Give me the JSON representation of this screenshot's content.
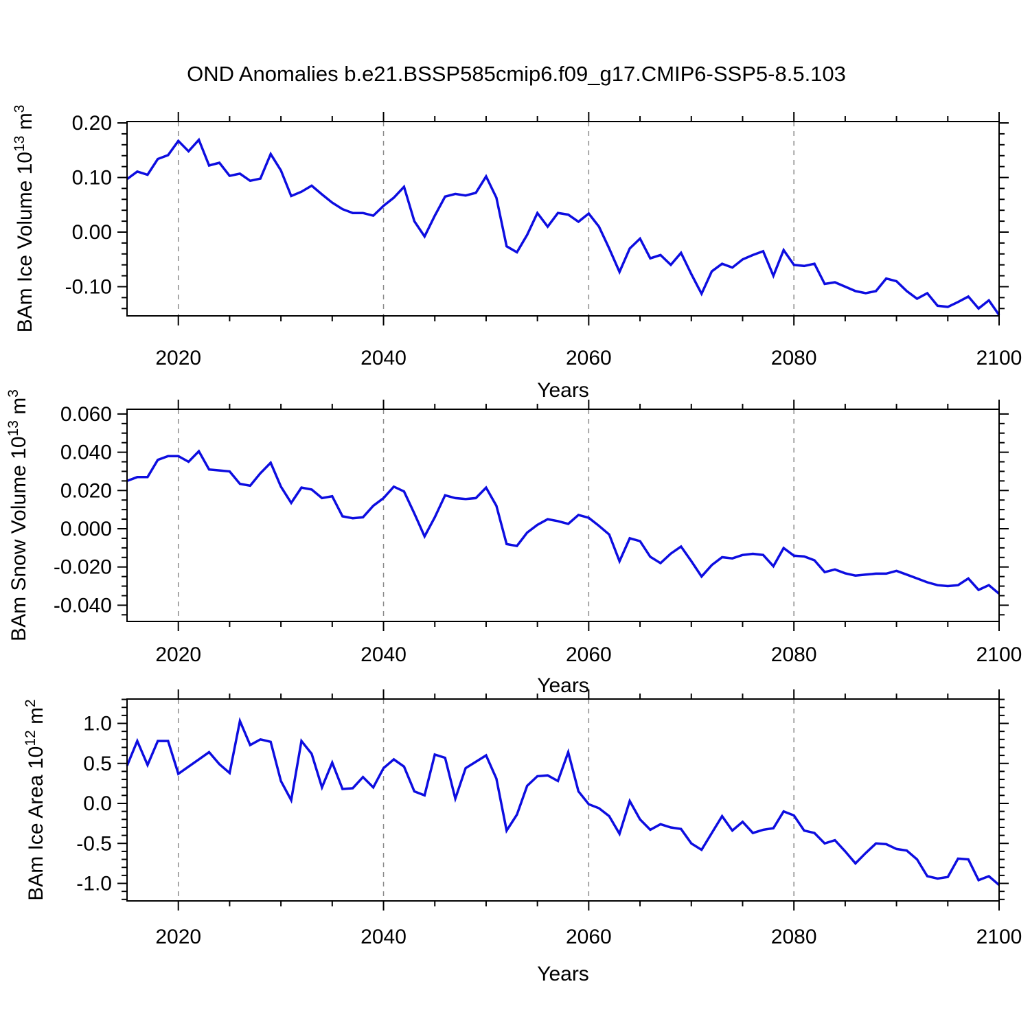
{
  "title": "OND Anomalies b.e21.BSSP585cmip6.f09_g17.CMIP6-SSP5-8.5.103",
  "line_color": "#0d0de0",
  "grid_color": "#8c8c8c",
  "frame_color": "#000000",
  "years": [
    2015,
    2016,
    2017,
    2018,
    2019,
    2020,
    2021,
    2022,
    2023,
    2024,
    2025,
    2026,
    2027,
    2028,
    2029,
    2030,
    2031,
    2032,
    2033,
    2034,
    2035,
    2036,
    2037,
    2038,
    2039,
    2040,
    2041,
    2042,
    2043,
    2044,
    2045,
    2046,
    2047,
    2048,
    2049,
    2050,
    2051,
    2052,
    2053,
    2054,
    2055,
    2056,
    2057,
    2058,
    2059,
    2060,
    2061,
    2062,
    2063,
    2064,
    2065,
    2066,
    2067,
    2068,
    2069,
    2070,
    2071,
    2072,
    2073,
    2074,
    2075,
    2076,
    2077,
    2078,
    2079,
    2080,
    2081,
    2082,
    2083,
    2084,
    2085,
    2086,
    2087,
    2088,
    2089,
    2090,
    2091,
    2092,
    2093,
    2094,
    2095,
    2096,
    2097,
    2098,
    2099,
    2100
  ],
  "chart_data": [
    {
      "type": "line",
      "id": "ice-volume",
      "title": "OND Anomalies b.e21.BSSP585cmip6.f09_g17.CMIP6-SSP5-8.5.103",
      "xlabel": "Years",
      "ylabel": "BAm Ice Volume 10^13 m^3",
      "ylabel_parts": [
        {
          "t": "BAm Ice Volume 10",
          "sup": false
        },
        {
          "t": "13",
          "sup": true
        },
        {
          "t": " m",
          "sup": false
        },
        {
          "t": "3",
          "sup": true
        }
      ],
      "xlim": [
        2015,
        2100
      ],
      "ylim": [
        -0.153,
        0.2025
      ],
      "x_tick_labels": [
        "2020",
        "2040",
        "2060",
        "2080",
        "2100"
      ],
      "x_ticks": [
        2020,
        2040,
        2060,
        2080,
        2100
      ],
      "x_minor_step": 5,
      "y_ticks": [
        0.2,
        0.1,
        0.0,
        -0.1
      ],
      "y_tick_labels": [
        "0.20",
        "0.10",
        "0.00",
        "-0.10"
      ],
      "y_major_step": 0.1,
      "y_minor_step": 0.02,
      "gridlines_x": [
        2020,
        2040,
        2060,
        2080
      ],
      "grid": "dashed-vertical",
      "legend": "none",
      "values": [
        0.097,
        0.111,
        0.105,
        0.134,
        0.141,
        0.167,
        0.148,
        0.169,
        0.122,
        0.127,
        0.103,
        0.107,
        0.094,
        0.098,
        0.143,
        0.113,
        0.066,
        0.074,
        0.085,
        0.069,
        0.054,
        0.042,
        0.035,
        0.035,
        0.03,
        0.048,
        0.063,
        0.083,
        0.02,
        -0.008,
        0.03,
        0.065,
        0.07,
        0.067,
        0.072,
        0.102,
        0.063,
        -0.026,
        -0.037,
        -0.005,
        0.035,
        0.01,
        0.035,
        0.032,
        0.019,
        0.034,
        0.01,
        -0.03,
        -0.073,
        -0.03,
        -0.012,
        -0.048,
        -0.042,
        -0.06,
        -0.038,
        -0.077,
        -0.113,
        -0.072,
        -0.058,
        -0.065,
        -0.05,
        -0.042,
        -0.035,
        -0.08,
        -0.033,
        -0.06,
        -0.062,
        -0.058,
        -0.095,
        -0.092,
        -0.1,
        -0.108,
        -0.112,
        -0.108,
        -0.085,
        -0.09,
        -0.108,
        -0.122,
        -0.112,
        -0.135,
        -0.137,
        -0.128,
        -0.118,
        -0.14,
        -0.125,
        -0.152
      ]
    },
    {
      "type": "line",
      "id": "snow-volume",
      "title": "",
      "xlabel": "Years",
      "ylabel": "BAm Snow Volume 10^13 m^3",
      "ylabel_parts": [
        {
          "t": "BAm Snow Volume 10",
          "sup": false
        },
        {
          "t": "13",
          "sup": true
        },
        {
          "t": " m",
          "sup": false
        },
        {
          "t": "3",
          "sup": true
        }
      ],
      "xlim": [
        2015,
        2100
      ],
      "ylim": [
        -0.0485,
        0.0625
      ],
      "x_tick_labels": [
        "2020",
        "2040",
        "2060",
        "2080",
        "2100"
      ],
      "x_ticks": [
        2020,
        2040,
        2060,
        2080,
        2100
      ],
      "x_minor_step": 5,
      "y_ticks": [
        0.06,
        0.04,
        0.02,
        0.0,
        -0.02,
        -0.04
      ],
      "y_tick_labels": [
        "0.060",
        "0.040",
        "0.020",
        "0.000",
        "-0.020",
        "-0.040"
      ],
      "y_major_step": 0.02,
      "y_minor_step": 0.005,
      "gridlines_x": [
        2020,
        2040,
        2060,
        2080
      ],
      "grid": "dashed-vertical",
      "legend": "none",
      "values": [
        0.025,
        0.027,
        0.027,
        0.036,
        0.038,
        0.038,
        0.035,
        0.0405,
        0.031,
        0.0305,
        0.03,
        0.0235,
        0.0225,
        0.029,
        0.0345,
        0.022,
        0.0135,
        0.0215,
        0.0205,
        0.016,
        0.017,
        0.0065,
        0.0055,
        0.006,
        0.012,
        0.016,
        0.022,
        0.0195,
        0.008,
        -0.004,
        0.006,
        0.0175,
        0.016,
        0.0155,
        0.016,
        0.0215,
        0.012,
        -0.008,
        -0.009,
        -0.002,
        0.002,
        0.005,
        0.004,
        0.0025,
        0.0072,
        0.0057,
        0.0015,
        -0.003,
        -0.017,
        -0.005,
        -0.0065,
        -0.0147,
        -0.018,
        -0.013,
        -0.0093,
        -0.017,
        -0.025,
        -0.019,
        -0.0149,
        -0.0155,
        -0.0137,
        -0.0131,
        -0.0137,
        -0.0196,
        -0.0101,
        -0.0141,
        -0.0145,
        -0.0165,
        -0.0227,
        -0.0213,
        -0.0233,
        -0.0245,
        -0.024,
        -0.0235,
        -0.0235,
        -0.022,
        -0.024,
        -0.026,
        -0.028,
        -0.0295,
        -0.03,
        -0.0295,
        -0.026,
        -0.032,
        -0.0295,
        -0.034
      ]
    },
    {
      "type": "line",
      "id": "ice-area",
      "title": "",
      "xlabel": "Years",
      "ylabel": "BAm Ice Area 10^12 m^2",
      "ylabel_parts": [
        {
          "t": "BAm Ice Area 10",
          "sup": false
        },
        {
          "t": "12",
          "sup": true
        },
        {
          "t": " m",
          "sup": false
        },
        {
          "t": "2",
          "sup": true
        }
      ],
      "xlim": [
        2015,
        2100
      ],
      "ylim": [
        -1.22,
        1.3
      ],
      "x_tick_labels": [
        "2020",
        "2040",
        "2060",
        "2080",
        "2100"
      ],
      "x_ticks": [
        2020,
        2040,
        2060,
        2080,
        2100
      ],
      "x_minor_step": 5,
      "y_ticks": [
        1.0,
        0.5,
        0.0,
        -0.5,
        -1.0
      ],
      "y_tick_labels": [
        "1.0",
        "0.5",
        "0.0",
        "-0.5",
        "-1.0"
      ],
      "y_major_step": 0.5,
      "y_minor_step": 0.1,
      "gridlines_x": [
        2020,
        2040,
        2060,
        2080
      ],
      "grid": "dashed-vertical",
      "legend": "none",
      "values": [
        0.47,
        0.78,
        0.48,
        0.78,
        0.78,
        0.37,
        0.46,
        0.55,
        0.64,
        0.49,
        0.38,
        1.03,
        0.73,
        0.8,
        0.77,
        0.28,
        0.04,
        0.78,
        0.62,
        0.2,
        0.51,
        0.18,
        0.19,
        0.33,
        0.2,
        0.44,
        0.55,
        0.46,
        0.15,
        0.1,
        0.61,
        0.57,
        0.06,
        0.44,
        0.52,
        0.6,
        0.31,
        -0.34,
        -0.14,
        0.22,
        0.34,
        0.35,
        0.28,
        0.64,
        0.15,
        -0.01,
        -0.06,
        -0.16,
        -0.38,
        0.03,
        -0.2,
        -0.33,
        -0.26,
        -0.3,
        -0.32,
        -0.5,
        -0.58,
        -0.37,
        -0.16,
        -0.34,
        -0.23,
        -0.37,
        -0.33,
        -0.31,
        -0.1,
        -0.15,
        -0.34,
        -0.37,
        -0.5,
        -0.46,
        -0.6,
        -0.75,
        -0.62,
        -0.5,
        -0.51,
        -0.57,
        -0.59,
        -0.7,
        -0.91,
        -0.94,
        -0.92,
        -0.69,
        -0.7,
        -0.96,
        -0.91,
        -1.02
      ]
    }
  ]
}
